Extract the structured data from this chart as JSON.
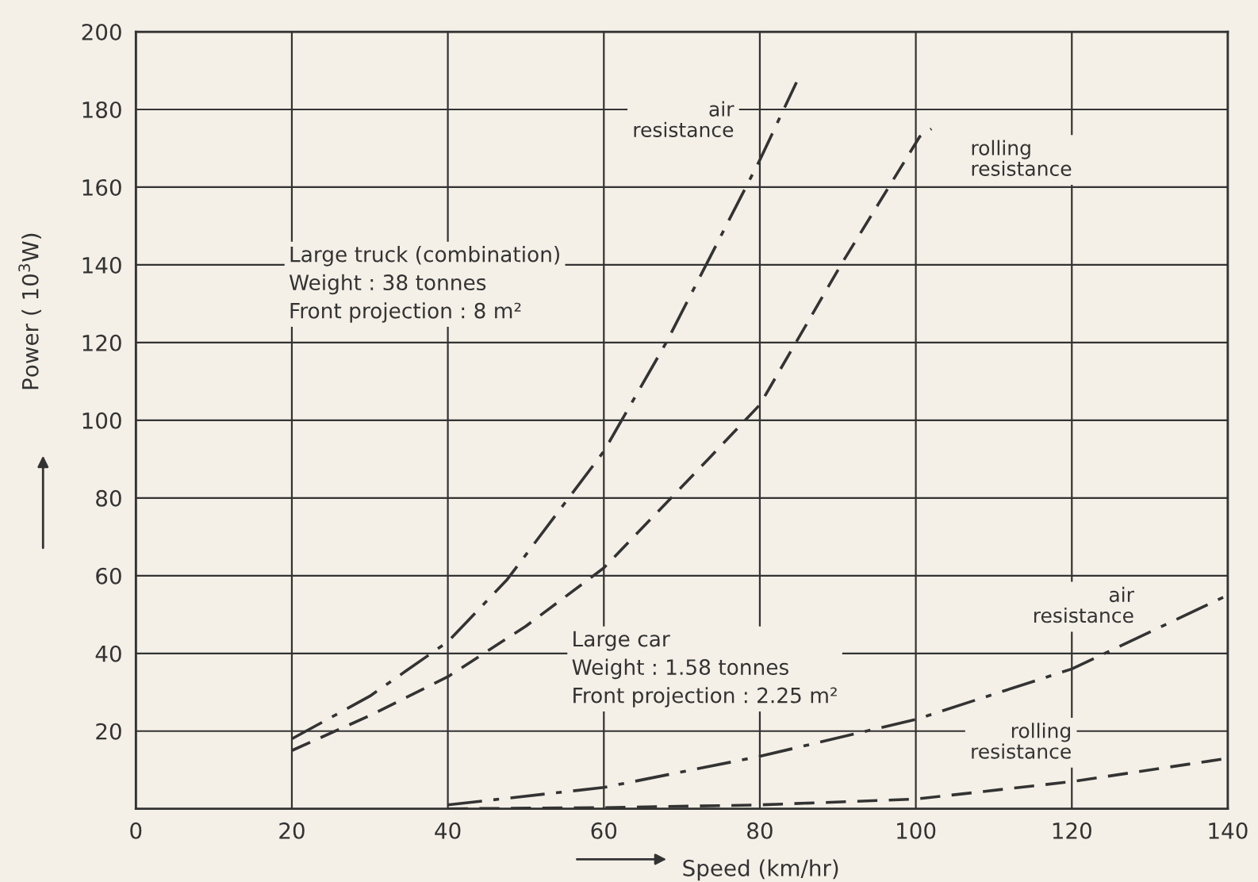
{
  "chart_data": {
    "type": "line",
    "xlabel": "Speed (km/hr)",
    "ylabel": "Power ( 10$^{3}$W)",
    "xlim": [
      0,
      140
    ],
    "xticks": [
      0,
      20,
      40,
      60,
      80,
      100,
      120,
      140
    ],
    "ylim": [
      0,
      200
    ],
    "yticks": [
      20,
      40,
      60,
      80,
      100,
      120,
      140,
      160,
      180,
      200
    ],
    "grid": true,
    "legend": false,
    "marker": "none",
    "annotations": [
      "Large truck (combination)\nWeight : 38 tonnes\nFront projection : 8 m²",
      "Large car\nWeight : 1.58 tonnes\nFront projection : 2.25 m²"
    ],
    "series": [
      {
        "name": "air\nresistance",
        "color": "#333333",
        "line_style": "dashdot",
        "x": [
          20,
          30,
          40,
          47.6,
          60,
          68,
          80,
          84.7
        ],
        "values": [
          18,
          29,
          43,
          59,
          92,
          120,
          167,
          187
        ]
      },
      {
        "name": "rolling\nresistance",
        "color": "#333333",
        "line_style": "dashed",
        "x": [
          20,
          30,
          40,
          50,
          60,
          73.4,
          80,
          90.4,
          100.5,
          102
        ],
        "values": [
          15,
          24,
          34,
          47,
          62,
          90,
          104,
          140,
          173,
          175
        ]
      },
      {
        "name": "air\nresistance",
        "color": "#333333",
        "line_style": "dashdot",
        "x": [
          40,
          60,
          80,
          100,
          120,
          140
        ],
        "values": [
          1,
          5.5,
          13.5,
          23,
          36,
          55
        ]
      },
      {
        "name": "rolling\nresistance",
        "color": "#333333",
        "line_style": "dashed",
        "x": [
          40,
          60,
          80,
          100,
          120,
          140
        ],
        "values": [
          0,
          0.3,
          1,
          2.5,
          7,
          13
        ]
      }
    ]
  }
}
